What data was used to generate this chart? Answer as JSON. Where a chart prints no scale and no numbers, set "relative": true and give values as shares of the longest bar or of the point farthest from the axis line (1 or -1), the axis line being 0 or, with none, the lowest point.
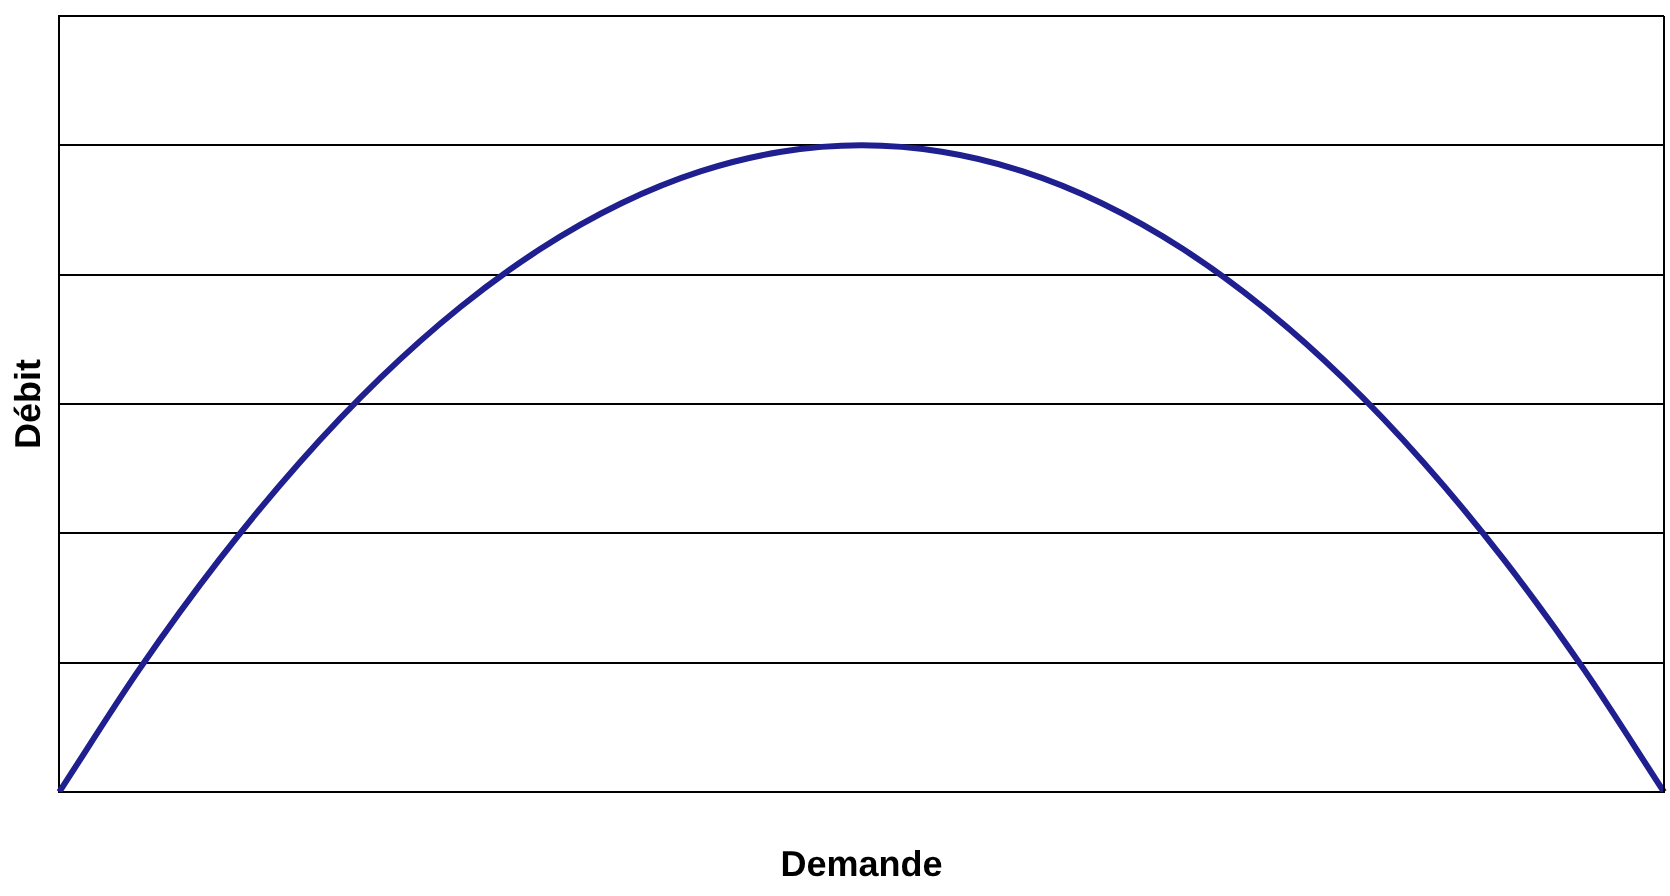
{
  "chart_data": {
    "type": "line",
    "relative": true,
    "xlabel": "Demande",
    "ylabel": "Débit",
    "categories": [
      null,
      null,
      null,
      null,
      null,
      null,
      null,
      null,
      null,
      null,
      null,
      null,
      null,
      null,
      null,
      null,
      null,
      null,
      null,
      null,
      null
    ],
    "series": [
      {
        "color": "#1f1f8f",
        "values": [
          0,
          0.19,
          0.36,
          0.51,
          0.64,
          0.75,
          0.84,
          0.91,
          0.96,
          0.99,
          1,
          0.99,
          0.96,
          0.91,
          0.84,
          0.75,
          0.64,
          0.51,
          0.36,
          0.19,
          0
        ]
      }
    ],
    "grid": "y",
    "legend": false,
    "marker": "none",
    "line_style": "solid"
  }
}
